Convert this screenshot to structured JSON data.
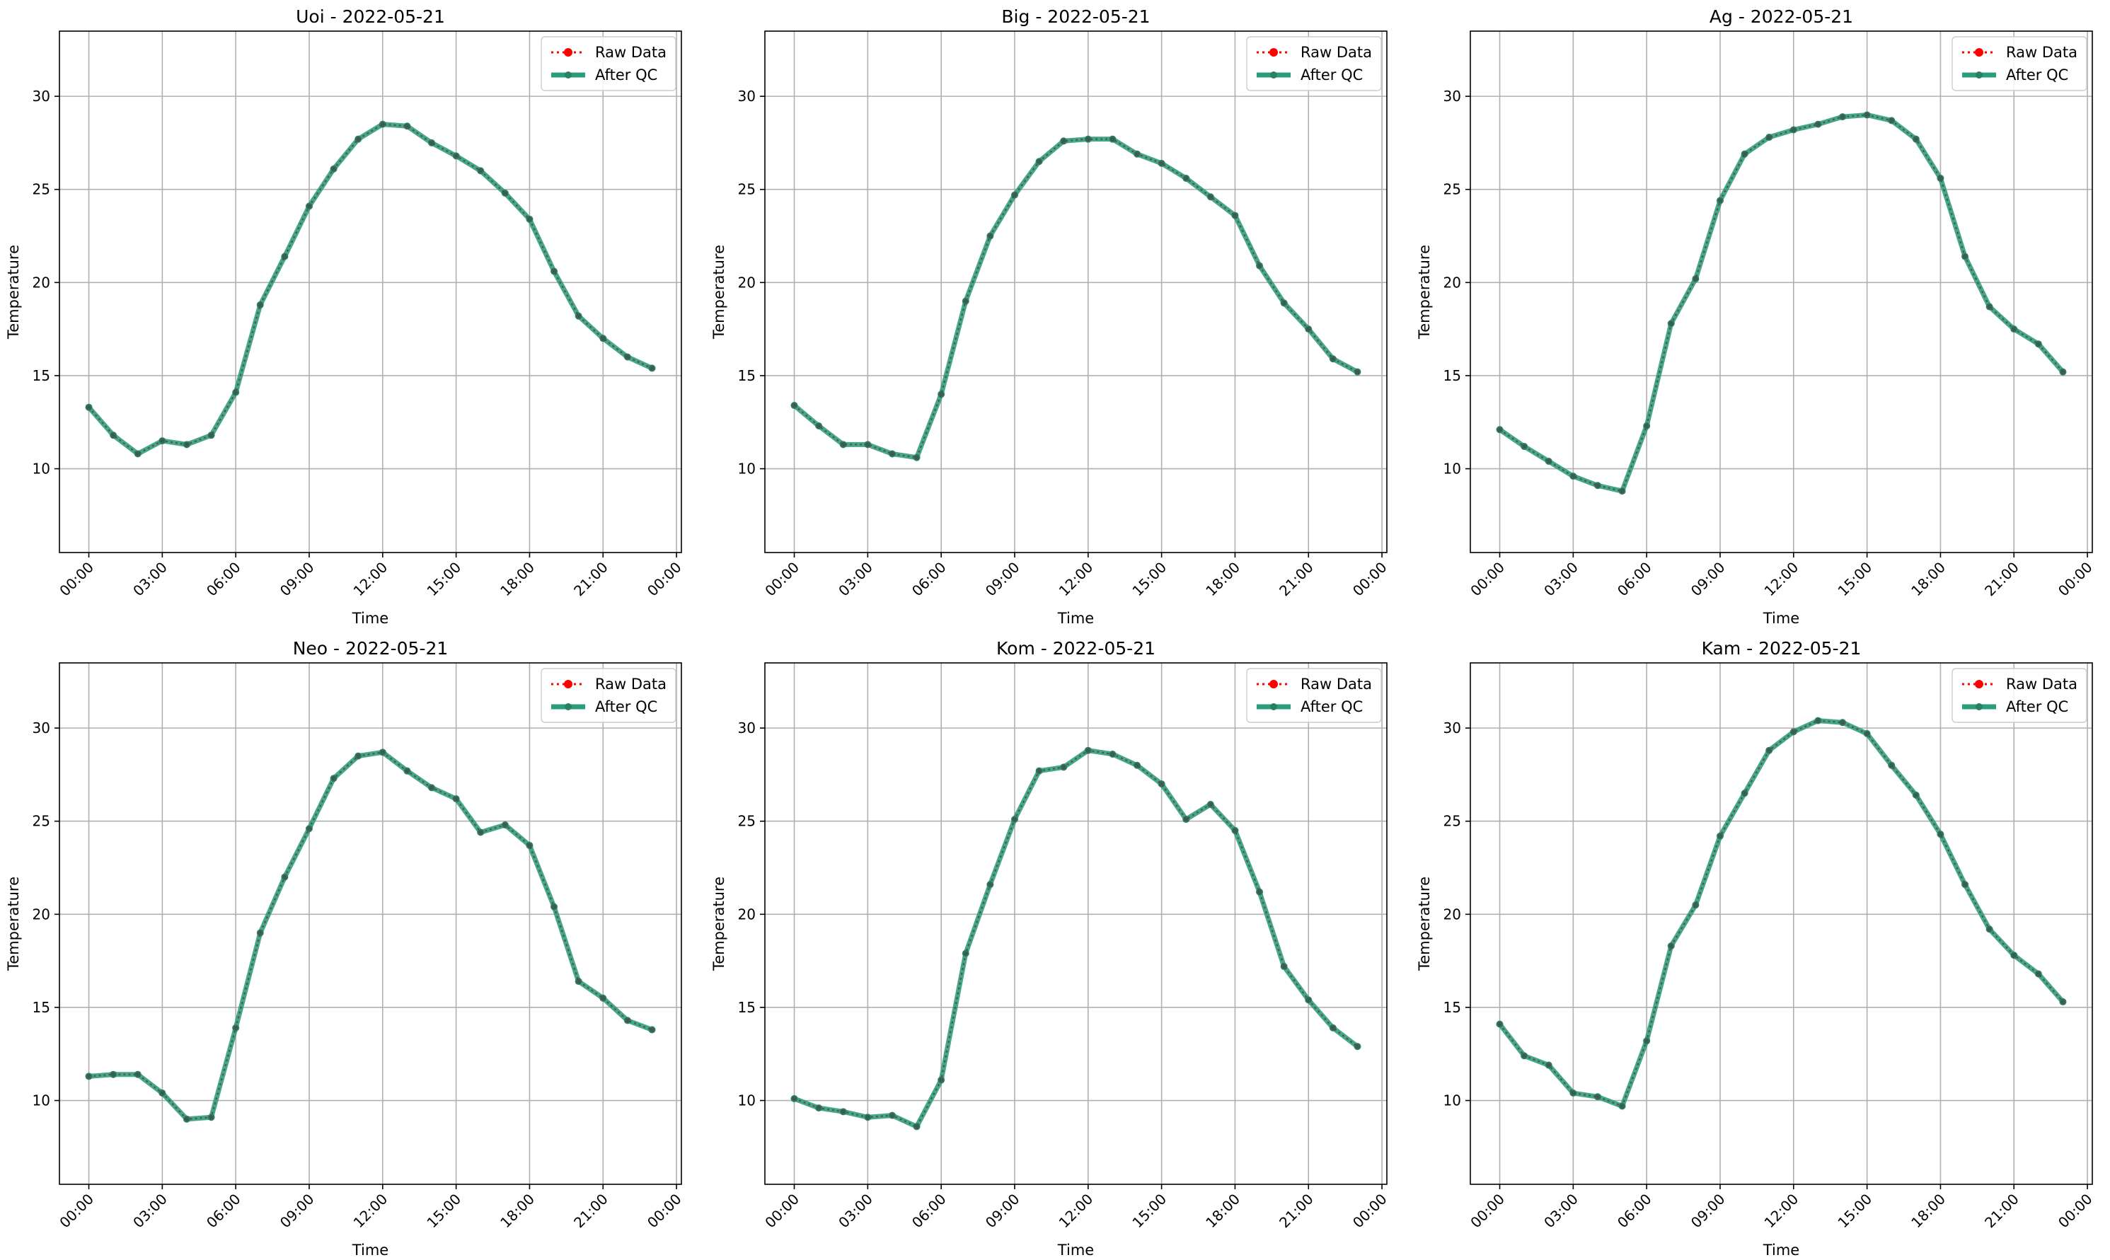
{
  "colors": {
    "raw": "#ff0000",
    "qc": "#2a9d7c",
    "grid": "#b0b0b0",
    "axis": "#000000"
  },
  "chart_data": [
    {
      "type": "line",
      "title": "Uoi - 2022-05-21",
      "xlabel": "Time",
      "ylabel": "Temperature",
      "ylim": [
        5.5,
        33.5
      ],
      "xlim": [
        -1.2,
        24.2
      ],
      "yticks": [
        "10",
        "15",
        "20",
        "25",
        "30"
      ],
      "xticks": [
        "00:00",
        "03:00",
        "06:00",
        "09:00",
        "12:00",
        "15:00",
        "18:00",
        "21:00",
        "00:00"
      ],
      "grid": true,
      "legend": "top-right",
      "legend_entries": [
        "Raw Data",
        "After QC"
      ],
      "x_hours": [
        0,
        1,
        2,
        3,
        4,
        5,
        6,
        7,
        8,
        9,
        10,
        11,
        12,
        13,
        14,
        15,
        16,
        17,
        18,
        19,
        20,
        21,
        22,
        23
      ],
      "series": [
        {
          "name": "Raw Data",
          "values": [
            13.3,
            11.8,
            10.8,
            11.5,
            11.3,
            11.8,
            14.1,
            18.8,
            21.4,
            24.1,
            26.1,
            27.7,
            28.5,
            28.4,
            27.5,
            26.8,
            26.0,
            24.8,
            23.4,
            20.6,
            18.2,
            17.0,
            16.0,
            15.4
          ]
        },
        {
          "name": "After QC",
          "values": [
            13.3,
            11.8,
            10.8,
            11.5,
            11.3,
            11.8,
            14.1,
            18.8,
            21.4,
            24.1,
            26.1,
            27.7,
            28.5,
            28.4,
            27.5,
            26.8,
            26.0,
            24.8,
            23.4,
            20.6,
            18.2,
            17.0,
            16.0,
            15.4
          ]
        }
      ]
    },
    {
      "type": "line",
      "title": "Big - 2022-05-21",
      "xlabel": "Time",
      "ylabel": "Temperature",
      "ylim": [
        5.5,
        33.5
      ],
      "xlim": [
        -1.2,
        24.2
      ],
      "yticks": [
        "10",
        "15",
        "20",
        "25",
        "30"
      ],
      "xticks": [
        "00:00",
        "03:00",
        "06:00",
        "09:00",
        "12:00",
        "15:00",
        "18:00",
        "21:00",
        "00:00"
      ],
      "grid": true,
      "legend": "top-right",
      "legend_entries": [
        "Raw Data",
        "After QC"
      ],
      "x_hours": [
        0,
        1,
        2,
        3,
        4,
        5,
        6,
        7,
        8,
        9,
        10,
        11,
        12,
        13,
        14,
        15,
        16,
        17,
        18,
        19,
        20,
        21,
        22,
        23
      ],
      "series": [
        {
          "name": "Raw Data",
          "values": [
            13.4,
            12.3,
            11.3,
            11.3,
            10.8,
            10.6,
            14.0,
            19.0,
            22.5,
            24.7,
            26.5,
            27.6,
            27.7,
            27.7,
            26.9,
            26.4,
            25.6,
            24.6,
            23.6,
            20.9,
            18.9,
            17.5,
            15.9,
            15.2
          ]
        },
        {
          "name": "After QC",
          "values": [
            13.4,
            12.3,
            11.3,
            11.3,
            10.8,
            10.6,
            14.0,
            19.0,
            22.5,
            24.7,
            26.5,
            27.6,
            27.7,
            27.7,
            26.9,
            26.4,
            25.6,
            24.6,
            23.6,
            20.9,
            18.9,
            17.5,
            15.9,
            15.2
          ]
        }
      ]
    },
    {
      "type": "line",
      "title": "Ag - 2022-05-21",
      "xlabel": "Time",
      "ylabel": "Temperature",
      "ylim": [
        5.5,
        33.5
      ],
      "xlim": [
        -1.2,
        24.2
      ],
      "yticks": [
        "10",
        "15",
        "20",
        "25",
        "30"
      ],
      "xticks": [
        "00:00",
        "03:00",
        "06:00",
        "09:00",
        "12:00",
        "15:00",
        "18:00",
        "21:00",
        "00:00"
      ],
      "grid": true,
      "legend": "top-right",
      "legend_entries": [
        "Raw Data",
        "After QC"
      ],
      "x_hours": [
        0,
        1,
        2,
        3,
        4,
        5,
        6,
        7,
        8,
        9,
        10,
        11,
        12,
        13,
        14,
        15,
        16,
        17,
        18,
        19,
        20,
        21,
        22,
        23
      ],
      "series": [
        {
          "name": "Raw Data",
          "values": [
            12.1,
            11.2,
            10.4,
            9.6,
            9.1,
            8.8,
            12.3,
            17.8,
            20.2,
            24.4,
            26.9,
            27.8,
            28.2,
            28.5,
            28.9,
            29.0,
            28.7,
            27.7,
            25.6,
            21.4,
            18.7,
            17.5,
            16.7,
            15.2
          ]
        },
        {
          "name": "After QC",
          "values": [
            12.1,
            11.2,
            10.4,
            9.6,
            9.1,
            8.8,
            12.3,
            17.8,
            20.2,
            24.4,
            26.9,
            27.8,
            28.2,
            28.5,
            28.9,
            29.0,
            28.7,
            27.7,
            25.6,
            21.4,
            18.7,
            17.5,
            16.7,
            15.2
          ]
        }
      ]
    },
    {
      "type": "line",
      "title": "Neo - 2022-05-21",
      "xlabel": "Time",
      "ylabel": "Temperature",
      "ylim": [
        5.5,
        33.5
      ],
      "xlim": [
        -1.2,
        24.2
      ],
      "yticks": [
        "10",
        "15",
        "20",
        "25",
        "30"
      ],
      "xticks": [
        "00:00",
        "03:00",
        "06:00",
        "09:00",
        "12:00",
        "15:00",
        "18:00",
        "21:00",
        "00:00"
      ],
      "grid": true,
      "legend": "top-right",
      "legend_entries": [
        "Raw Data",
        "After QC"
      ],
      "x_hours": [
        0,
        1,
        2,
        3,
        4,
        5,
        6,
        7,
        8,
        9,
        10,
        11,
        12,
        13,
        14,
        15,
        16,
        17,
        18,
        19,
        20,
        21,
        22,
        23
      ],
      "series": [
        {
          "name": "Raw Data",
          "values": [
            11.3,
            11.4,
            11.4,
            10.4,
            9.0,
            9.1,
            13.9,
            19.0,
            22.0,
            24.6,
            27.3,
            28.5,
            28.7,
            27.7,
            26.8,
            26.2,
            24.4,
            24.8,
            23.7,
            20.4,
            16.4,
            15.5,
            14.3,
            13.8
          ]
        },
        {
          "name": "After QC",
          "values": [
            11.3,
            11.4,
            11.4,
            10.4,
            9.0,
            9.1,
            13.9,
            19.0,
            22.0,
            24.6,
            27.3,
            28.5,
            28.7,
            27.7,
            26.8,
            26.2,
            24.4,
            24.8,
            23.7,
            20.4,
            16.4,
            15.5,
            14.3,
            13.8
          ]
        }
      ]
    },
    {
      "type": "line",
      "title": "Kom - 2022-05-21",
      "xlabel": "Time",
      "ylabel": "Temperature",
      "ylim": [
        5.5,
        33.5
      ],
      "xlim": [
        -1.2,
        24.2
      ],
      "yticks": [
        "10",
        "15",
        "20",
        "25",
        "30"
      ],
      "xticks": [
        "00:00",
        "03:00",
        "06:00",
        "09:00",
        "12:00",
        "15:00",
        "18:00",
        "21:00",
        "00:00"
      ],
      "grid": true,
      "legend": "top-right",
      "legend_entries": [
        "Raw Data",
        "After QC"
      ],
      "x_hours": [
        0,
        1,
        2,
        3,
        4,
        5,
        6,
        7,
        8,
        9,
        10,
        11,
        12,
        13,
        14,
        15,
        16,
        17,
        18,
        19,
        20,
        21,
        22,
        23
      ],
      "series": [
        {
          "name": "Raw Data",
          "values": [
            10.1,
            9.6,
            9.4,
            9.1,
            9.2,
            8.6,
            11.1,
            17.9,
            21.6,
            25.1,
            27.7,
            27.9,
            28.8,
            28.6,
            28.0,
            27.0,
            25.1,
            25.9,
            24.5,
            21.2,
            17.2,
            15.4,
            13.9,
            12.9
          ]
        },
        {
          "name": "After QC",
          "values": [
            10.1,
            9.6,
            9.4,
            9.1,
            9.2,
            8.6,
            11.1,
            17.9,
            21.6,
            25.1,
            27.7,
            27.9,
            28.8,
            28.6,
            28.0,
            27.0,
            25.1,
            25.9,
            24.5,
            21.2,
            17.2,
            15.4,
            13.9,
            12.9
          ]
        }
      ]
    },
    {
      "type": "line",
      "title": "Kam - 2022-05-21",
      "xlabel": "Time",
      "ylabel": "Temperature",
      "ylim": [
        5.5,
        33.5
      ],
      "xlim": [
        -1.2,
        24.2
      ],
      "yticks": [
        "10",
        "15",
        "20",
        "25",
        "30"
      ],
      "xticks": [
        "00:00",
        "03:00",
        "06:00",
        "09:00",
        "12:00",
        "15:00",
        "18:00",
        "21:00",
        "00:00"
      ],
      "grid": true,
      "legend": "top-right",
      "legend_entries": [
        "Raw Data",
        "After QC"
      ],
      "x_hours": [
        0,
        1,
        2,
        3,
        4,
        5,
        6,
        7,
        8,
        9,
        10,
        11,
        12,
        13,
        14,
        15,
        16,
        17,
        18,
        19,
        20,
        21,
        22,
        23
      ],
      "series": [
        {
          "name": "Raw Data",
          "values": [
            14.1,
            12.4,
            11.9,
            10.4,
            10.2,
            9.7,
            13.2,
            18.3,
            20.5,
            24.2,
            26.5,
            28.8,
            29.8,
            30.4,
            30.3,
            29.7,
            28.0,
            26.4,
            24.3,
            21.6,
            19.2,
            17.8,
            16.8,
            15.3
          ]
        },
        {
          "name": "After QC",
          "values": [
            14.1,
            12.4,
            11.9,
            10.4,
            10.2,
            9.7,
            13.2,
            18.3,
            20.5,
            24.2,
            26.5,
            28.8,
            29.8,
            30.4,
            30.3,
            29.7,
            28.0,
            26.4,
            24.3,
            21.6,
            19.2,
            17.8,
            16.8,
            15.3
          ]
        }
      ]
    }
  ]
}
